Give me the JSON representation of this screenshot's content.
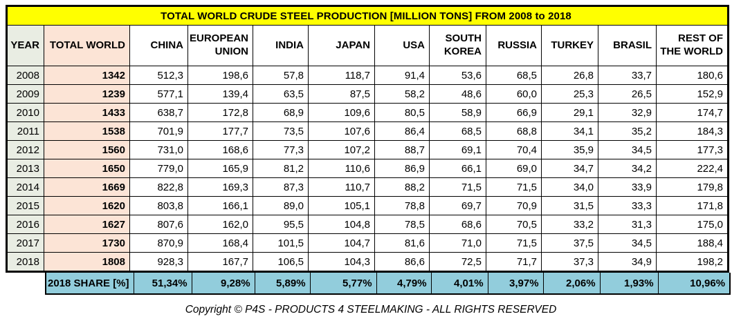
{
  "title": "TOTAL WORLD CRUDE STEEL PRODUCTION [MILLION TONS] FROM 2008 to 2018",
  "footer": "Copyright © P4S - PRODUCTS 4 STEELMAKING - ALL RIGHTS RESERVED",
  "colors": {
    "title_bg": "#FFFF00",
    "year_column_bg": "#E9EDE3",
    "total_world_column_bg": "#FCE4D6",
    "share_row_bg": "#92CDDC",
    "border": "#000000",
    "text": "#000000"
  },
  "chart_data": {
    "type": "table",
    "title": "TOTAL WORLD CRUDE STEEL PRODUCTION [MILLION TONS] FROM 2008 to 2018",
    "columns": [
      "YEAR",
      "TOTAL WORLD",
      "CHINA",
      "EUROPEAN UNION",
      "INDIA",
      "JAPAN",
      "USA",
      "SOUTH KOREA",
      "RUSSIA",
      "TURKEY",
      "BRASIL",
      "REST OF THE WORLD"
    ],
    "rows": [
      {
        "year": "2008",
        "total": "1342",
        "values": [
          "512,3",
          "198,6",
          "57,8",
          "118,7",
          "91,4",
          "53,6",
          "68,5",
          "26,8",
          "33,7",
          "180,6"
        ]
      },
      {
        "year": "2009",
        "total": "1239",
        "values": [
          "577,1",
          "139,4",
          "63,5",
          "87,5",
          "58,2",
          "48,6",
          "60,0",
          "25,3",
          "26,5",
          "152,9"
        ]
      },
      {
        "year": "2010",
        "total": "1433",
        "values": [
          "638,7",
          "172,8",
          "68,9",
          "109,6",
          "80,5",
          "58,9",
          "66,9",
          "29,1",
          "32,9",
          "174,7"
        ]
      },
      {
        "year": "2011",
        "total": "1538",
        "values": [
          "701,9",
          "177,7",
          "73,5",
          "107,6",
          "86,4",
          "68,5",
          "68,8",
          "34,1",
          "35,2",
          "184,3"
        ]
      },
      {
        "year": "2012",
        "total": "1560",
        "values": [
          "731,0",
          "168,6",
          "77,3",
          "107,2",
          "88,7",
          "69,1",
          "70,4",
          "35,9",
          "34,5",
          "177,3"
        ]
      },
      {
        "year": "2013",
        "total": "1650",
        "values": [
          "779,0",
          "165,9",
          "81,2",
          "110,6",
          "86,9",
          "66,1",
          "69,0",
          "34,7",
          "34,2",
          "222,4"
        ]
      },
      {
        "year": "2014",
        "total": "1669",
        "values": [
          "822,8",
          "169,3",
          "87,3",
          "110,7",
          "88,2",
          "71,5",
          "71,5",
          "34,0",
          "33,9",
          "179,8"
        ]
      },
      {
        "year": "2015",
        "total": "1620",
        "values": [
          "803,8",
          "166,1",
          "89,0",
          "105,1",
          "78,8",
          "69,7",
          "70,9",
          "31,5",
          "33,3",
          "171,8"
        ]
      },
      {
        "year": "2016",
        "total": "1627",
        "values": [
          "807,6",
          "162,0",
          "95,5",
          "104,8",
          "78,5",
          "68,6",
          "70,5",
          "33,2",
          "31,3",
          "175,0"
        ]
      },
      {
        "year": "2017",
        "total": "1730",
        "values": [
          "870,9",
          "168,4",
          "101,5",
          "104,7",
          "81,6",
          "71,0",
          "71,5",
          "37,5",
          "34,5",
          "188,4"
        ]
      },
      {
        "year": "2018",
        "total": "1808",
        "values": [
          "928,3",
          "167,7",
          "106,5",
          "104,3",
          "86,6",
          "72,5",
          "71,7",
          "37,3",
          "34,9",
          "198,2"
        ]
      }
    ],
    "share_row": {
      "label": "2018 SHARE [%]",
      "values": [
        "51,34%",
        "9,28%",
        "5,89%",
        "5,77%",
        "4,79%",
        "4,01%",
        "3,97%",
        "2,06%",
        "1,93%",
        "10,96%"
      ]
    }
  }
}
